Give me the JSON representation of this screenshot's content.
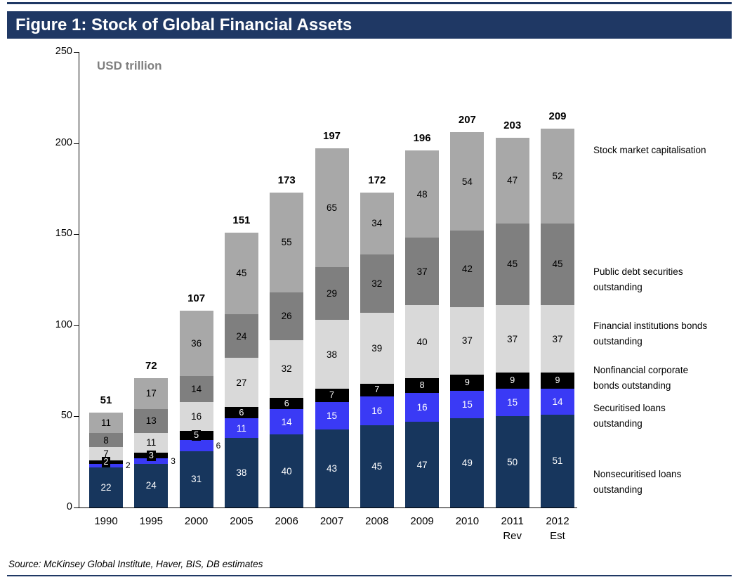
{
  "figure": {
    "title": "Figure 1: Stock of Global Financial Assets",
    "accent_color": "#1F3864",
    "source": "Source: McKinsey Global Institute, Haver, BIS, DB estimates"
  },
  "chart_data": {
    "type": "bar",
    "stacked": true,
    "title": "Figure 1: Stock of Global Financial Assets",
    "ylabel": "USD trillion",
    "xlabel": "",
    "ylim": [
      0,
      250
    ],
    "yticks": [
      0,
      50,
      100,
      150,
      200,
      250
    ],
    "grid": false,
    "legend_position": "right",
    "categories": [
      "1990",
      "1995",
      "2000",
      "2005",
      "2006",
      "2007",
      "2008",
      "2009",
      "2010",
      "2011",
      "2012"
    ],
    "category_sublabels": [
      "",
      "",
      "",
      "",
      "",
      "",
      "",
      "",
      "",
      "Rev",
      "Est"
    ],
    "totals": [
      51,
      72,
      107,
      151,
      173,
      197,
      172,
      196,
      207,
      203,
      209
    ],
    "series": [
      {
        "name": "Nonsecuritised loans outstanding",
        "short": "nonsecuritised-loans",
        "color": "#17365D",
        "text_color": "#FFFFFF",
        "values": [
          22,
          24,
          31,
          38,
          40,
          43,
          45,
          47,
          49,
          50,
          51
        ]
      },
      {
        "name": "Securitised loans outstanding",
        "short": "securitised-loans",
        "color": "#3A3AF5",
        "text_color": "#FFFFFF",
        "values": [
          2,
          3,
          6,
          11,
          14,
          15,
          16,
          16,
          15,
          15,
          14
        ]
      },
      {
        "name": "Nonfinancial corporate bonds outstanding",
        "short": "nonfinancial-corporate-bonds",
        "color": "#000000",
        "text_color": "#FFFFFF",
        "label_style": "box",
        "values": [
          2,
          3,
          5,
          6,
          6,
          7,
          7,
          8,
          9,
          9,
          9
        ]
      },
      {
        "name": "Financial institutions bonds outstanding",
        "short": "financial-institutions-bonds",
        "color": "#D9D9D9",
        "text_color": "#000000",
        "values": [
          7,
          11,
          16,
          27,
          32,
          38,
          39,
          40,
          37,
          37,
          37
        ]
      },
      {
        "name": "Public debt securities outstanding",
        "short": "public-debt-securities",
        "color": "#7F7F7F",
        "text_color": "#000000",
        "values": [
          8,
          13,
          14,
          24,
          26,
          29,
          32,
          37,
          42,
          45,
          45
        ]
      },
      {
        "name": "Stock market capitalisation",
        "short": "stock-market-capitalisation",
        "color": "#A8A8A8",
        "text_color": "#000000",
        "values": [
          11,
          17,
          36,
          45,
          55,
          65,
          34,
          48,
          54,
          47,
          52
        ]
      }
    ]
  }
}
